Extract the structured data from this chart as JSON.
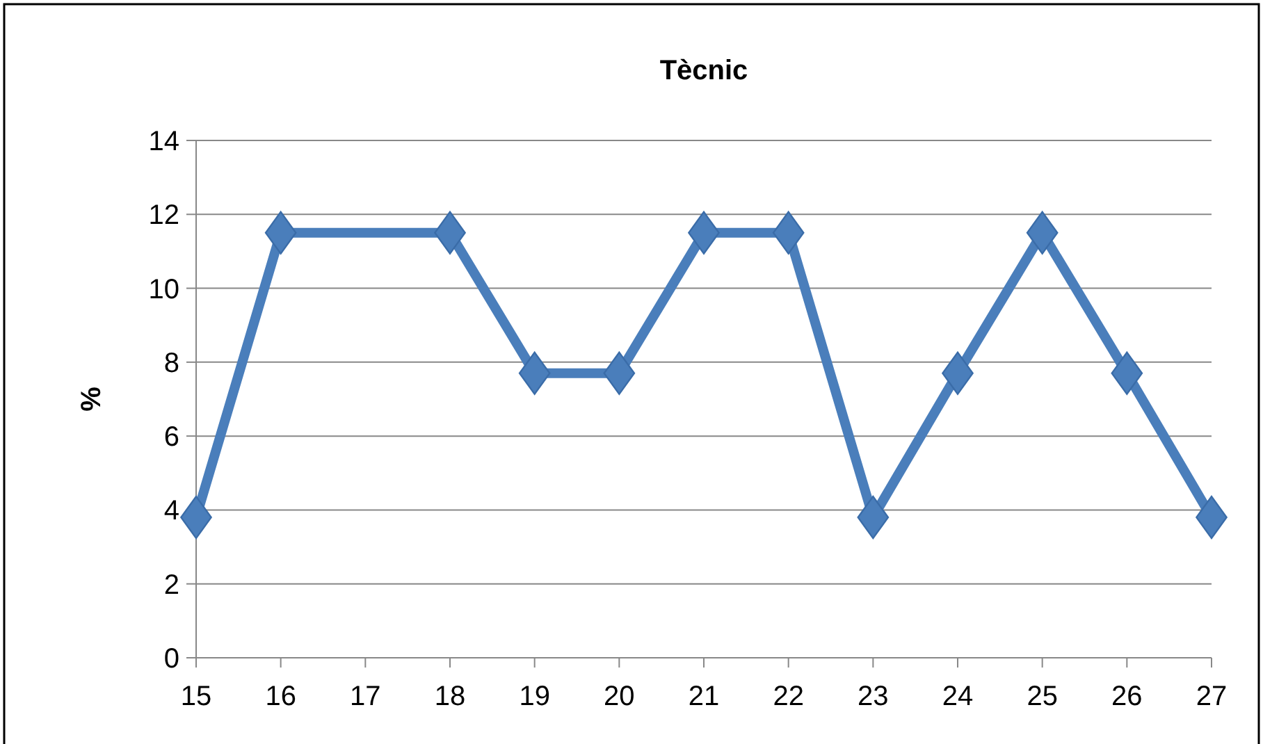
{
  "chart_data": {
    "type": "line",
    "title": "Tècnic",
    "ylabel": "%",
    "categories": [
      "15",
      "16",
      "17",
      "18",
      "19",
      "20",
      "21",
      "22",
      "23",
      "24",
      "25",
      "26",
      "27"
    ],
    "series": [
      {
        "color": "#4a7ebb",
        "values": [
          3.8,
          11.5,
          null,
          11.5,
          7.7,
          7.7,
          11.5,
          11.5,
          3.8,
          7.7,
          11.5,
          7.7,
          3.8
        ]
      }
    ],
    "ylim": [
      0,
      14
    ],
    "yticks": [
      0,
      2,
      4,
      6,
      8,
      10,
      12,
      14
    ],
    "grid": "y",
    "marker": "diamond"
  }
}
